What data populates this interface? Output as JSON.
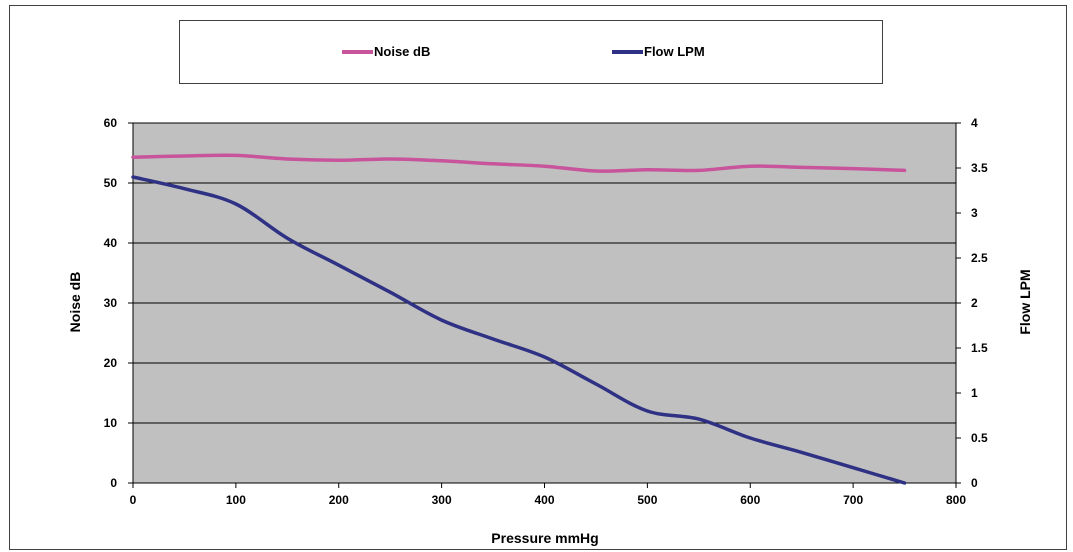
{
  "chart_data": {
    "type": "line",
    "title": "",
    "xlabel": "Pressure mmHg",
    "ylabel": "Noise dB",
    "y2label": "Flow LPM",
    "xlim": [
      0,
      800
    ],
    "ylim": [
      0,
      60
    ],
    "y2lim": [
      0,
      4
    ],
    "x_ticks": [
      "0",
      "100",
      "200",
      "300",
      "400",
      "500",
      "600",
      "700",
      "800"
    ],
    "y_ticks": [
      "0",
      "10",
      "20",
      "30",
      "40",
      "50",
      "60"
    ],
    "y2_ticks": [
      "0",
      "0.5",
      "1",
      "1.5",
      "2",
      "2.5",
      "3",
      "3.5",
      "4"
    ],
    "grid": "horizontal",
    "plot_background": "#c0c0c0",
    "legend_position": "top",
    "series": [
      {
        "name": "Noise dB",
        "axis": "left",
        "color": "#c8549c",
        "x": [
          0,
          50,
          100,
          150,
          200,
          250,
          300,
          350,
          400,
          450,
          500,
          550,
          600,
          650,
          700,
          750
        ],
        "values": [
          54.3,
          54.5,
          54.6,
          54.0,
          53.8,
          54.0,
          53.7,
          53.2,
          52.8,
          52.0,
          52.2,
          52.1,
          52.8,
          52.6,
          52.4,
          52.1
        ]
      },
      {
        "name": "Flow LPM",
        "axis": "right",
        "color": "#2e3184",
        "x": [
          0,
          50,
          100,
          150,
          200,
          250,
          300,
          350,
          400,
          450,
          500,
          550,
          600,
          650,
          700,
          750
        ],
        "values": [
          3.4,
          3.27,
          3.1,
          2.72,
          2.42,
          2.12,
          1.81,
          1.6,
          1.4,
          1.1,
          0.8,
          0.71,
          0.5,
          0.34,
          0.17,
          0.0
        ]
      }
    ]
  }
}
